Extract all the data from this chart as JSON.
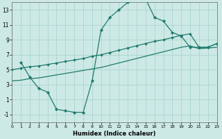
{
  "xlabel": "Humidex (Indice chaleur)",
  "bg_color": "#cde9e5",
  "grid_color": "#aad4ce",
  "line_color": "#1f7a6e",
  "xlim": [
    0,
    23
  ],
  "ylim": [
    -2,
    14
  ],
  "xticks": [
    0,
    1,
    2,
    3,
    4,
    5,
    6,
    7,
    8,
    9,
    10,
    11,
    12,
    13,
    14,
    15,
    16,
    17,
    18,
    19,
    20,
    21,
    22,
    23
  ],
  "yticks": [
    -1,
    1,
    3,
    5,
    7,
    9,
    11,
    13
  ],
  "curve1_x": [
    1,
    2,
    3,
    4,
    5,
    6,
    7,
    8,
    9,
    10,
    11,
    12,
    13,
    14,
    15,
    16,
    17,
    18,
    19,
    20,
    21,
    22,
    23
  ],
  "curve1_y": [
    6.0,
    4.0,
    2.5,
    2.0,
    -0.3,
    -0.5,
    -0.7,
    -0.7,
    3.5,
    10.3,
    12.0,
    13.0,
    14.0,
    14.3,
    14.5,
    12.0,
    11.5,
    10.0,
    9.5,
    8.0,
    8.0,
    8.0,
    8.5
  ],
  "curve2_x": [
    0,
    1,
    2,
    3,
    4,
    5,
    6,
    7,
    8,
    9,
    10,
    11,
    12,
    13,
    14,
    15,
    16,
    17,
    18,
    19,
    20,
    21,
    22,
    23
  ],
  "curve2_y": [
    5.0,
    5.2,
    5.4,
    5.5,
    5.7,
    5.9,
    6.1,
    6.3,
    6.5,
    6.8,
    7.0,
    7.3,
    7.6,
    7.9,
    8.2,
    8.5,
    8.8,
    9.0,
    9.3,
    9.6,
    9.8,
    8.0,
    8.0,
    8.5
  ],
  "curve3_x": [
    0,
    1,
    2,
    3,
    4,
    5,
    6,
    7,
    8,
    9,
    10,
    11,
    12,
    13,
    14,
    15,
    16,
    17,
    18,
    19,
    20,
    21,
    22,
    23
  ],
  "curve3_y": [
    3.5,
    3.6,
    3.8,
    3.9,
    4.1,
    4.3,
    4.5,
    4.7,
    4.9,
    5.1,
    5.3,
    5.6,
    5.9,
    6.2,
    6.5,
    6.8,
    7.1,
    7.4,
    7.7,
    8.0,
    8.2,
    7.8,
    7.9,
    8.0
  ]
}
